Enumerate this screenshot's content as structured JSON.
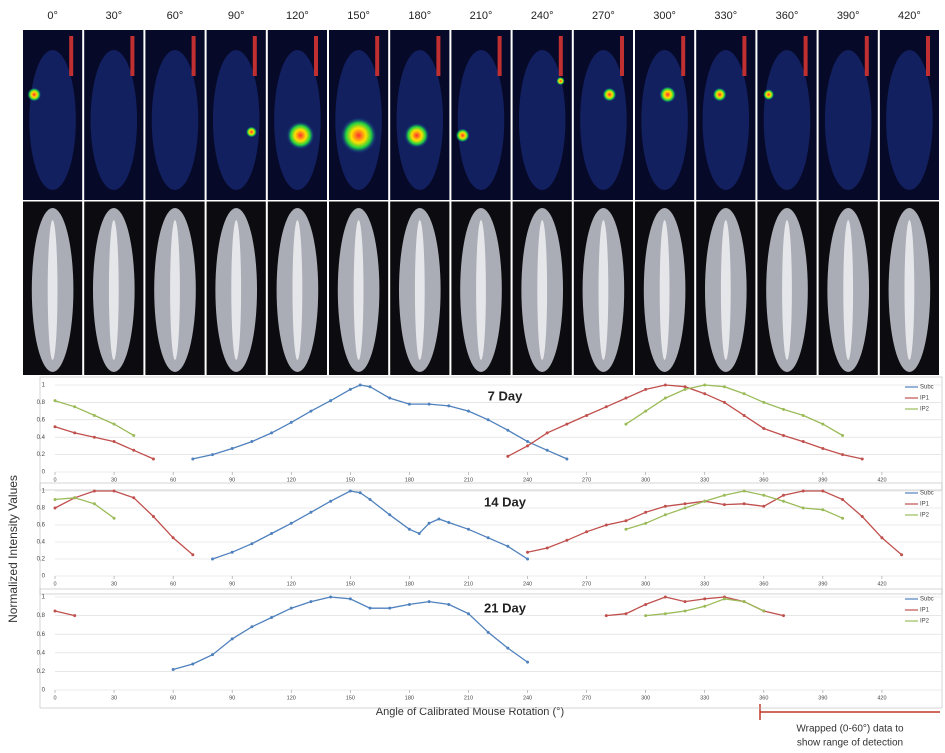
{
  "figure": {
    "angles": [
      "0°",
      "30°",
      "60°",
      "90°",
      "120°",
      "150°",
      "180°",
      "210°",
      "240°",
      "270°",
      "300°",
      "330°",
      "360°",
      "390°",
      "420°"
    ],
    "y_axis_label": "Normalized Intensity Values",
    "x_axis_label": "Angle of Calibrated Mouse Rotation (°)",
    "annotation": [
      "Wrapped (0-60°) data to",
      "show range of detection"
    ]
  },
  "chart_data": [
    {
      "type": "line",
      "title": "7 Day",
      "xlim": [
        0,
        450
      ],
      "xticks": [
        0,
        30,
        60,
        90,
        120,
        150,
        180,
        210,
        240,
        270,
        300,
        330,
        360,
        390,
        420
      ],
      "ylim": [
        0,
        1
      ],
      "yticks": [
        0,
        0.2,
        0.4,
        0.6,
        0.8,
        1
      ],
      "grid": true,
      "legend": "right",
      "series": [
        {
          "name": "Subc",
          "color": "#4f81bd",
          "x": [
            70,
            80,
            90,
            100,
            110,
            120,
            130,
            140,
            150,
            155,
            160,
            170,
            180,
            190,
            200,
            210,
            220,
            230,
            240,
            250,
            260
          ],
          "values": [
            0.15,
            0.2,
            0.27,
            0.35,
            0.45,
            0.57,
            0.7,
            0.82,
            0.95,
            1,
            0.98,
            0.85,
            0.78,
            0.78,
            0.76,
            0.7,
            0.6,
            0.48,
            0.35,
            0.25,
            0.15
          ]
        },
        {
          "name": "IP1",
          "color": "#c0504d",
          "x": [
            0,
            10,
            20,
            30,
            40,
            50,
            140,
            230,
            240,
            250,
            260,
            270,
            280,
            290,
            300,
            310,
            320,
            330,
            340,
            350,
            360,
            370,
            380,
            390,
            400,
            410
          ],
          "values": [
            0.52,
            0.45,
            0.4,
            0.35,
            0.25,
            0.15,
            null,
            0.18,
            0.3,
            0.45,
            0.55,
            0.65,
            0.75,
            0.85,
            0.95,
            1,
            0.98,
            0.9,
            0.8,
            0.65,
            0.5,
            0.42,
            0.35,
            0.27,
            0.2,
            0.15
          ]
        },
        {
          "name": "IP2",
          "color": "#9bbb59",
          "x": [
            0,
            10,
            20,
            30,
            40,
            160,
            290,
            300,
            310,
            320,
            330,
            340,
            350,
            360,
            370,
            380,
            390,
            400
          ],
          "values": [
            0.82,
            0.75,
            0.65,
            0.55,
            0.42,
            null,
            0.55,
            0.7,
            0.85,
            0.95,
            1,
            0.98,
            0.9,
            0.8,
            0.72,
            0.65,
            0.55,
            0.42
          ]
        }
      ]
    },
    {
      "type": "line",
      "title": "14 Day",
      "xlim": [
        0,
        450
      ],
      "xticks": [
        0,
        30,
        60,
        90,
        120,
        150,
        180,
        210,
        240,
        270,
        300,
        330,
        360,
        390,
        420
      ],
      "ylim": [
        0,
        1
      ],
      "yticks": [
        0,
        0.2,
        0.4,
        0.6,
        0.8,
        1
      ],
      "grid": true,
      "legend": "right",
      "series": [
        {
          "name": "Subc",
          "color": "#4f81bd",
          "x": [
            80,
            90,
            100,
            110,
            120,
            130,
            140,
            150,
            155,
            160,
            170,
            180,
            185,
            190,
            195,
            200,
            210,
            220,
            230,
            240
          ],
          "values": [
            0.2,
            0.28,
            0.38,
            0.5,
            0.62,
            0.75,
            0.88,
            1,
            0.98,
            0.9,
            0.72,
            0.55,
            0.5,
            0.62,
            0.67,
            0.63,
            0.55,
            0.45,
            0.35,
            0.2
          ]
        },
        {
          "name": "IP1",
          "color": "#c0504d",
          "x": [
            0,
            10,
            20,
            30,
            40,
            50,
            60,
            70,
            150,
            240,
            250,
            260,
            270,
            280,
            290,
            300,
            310,
            320,
            330,
            340,
            350,
            360,
            370,
            380,
            390,
            400,
            410,
            420,
            430
          ],
          "values": [
            0.8,
            0.92,
            1,
            1,
            0.92,
            0.7,
            0.45,
            0.25,
            null,
            0.28,
            0.33,
            0.42,
            0.52,
            0.6,
            0.65,
            0.75,
            0.82,
            0.85,
            0.88,
            0.84,
            0.85,
            0.82,
            0.95,
            1,
            1,
            0.9,
            0.7,
            0.45,
            0.25
          ]
        },
        {
          "name": "IP2",
          "color": "#9bbb59",
          "x": [
            0,
            10,
            20,
            30,
            160,
            290,
            300,
            310,
            320,
            330,
            340,
            350,
            360,
            370,
            380,
            390,
            400
          ],
          "values": [
            0.9,
            0.92,
            0.85,
            0.68,
            null,
            0.55,
            0.62,
            0.72,
            0.8,
            0.88,
            0.95,
            1,
            0.95,
            0.88,
            0.8,
            0.78,
            0.68
          ]
        }
      ]
    },
    {
      "type": "line",
      "title": "21 Day",
      "xlim": [
        0,
        450
      ],
      "xticks": [
        0,
        30,
        60,
        90,
        120,
        150,
        180,
        210,
        240,
        270,
        300,
        330,
        360,
        390,
        420
      ],
      "ylim": [
        0,
        1
      ],
      "yticks": [
        0,
        0.2,
        0.4,
        0.6,
        0.8,
        1
      ],
      "grid": true,
      "legend": "right",
      "series": [
        {
          "name": "Subc",
          "color": "#4f81bd",
          "x": [
            60,
            70,
            80,
            90,
            100,
            110,
            120,
            130,
            140,
            150,
            160,
            170,
            180,
            190,
            200,
            210,
            220,
            230,
            240
          ],
          "values": [
            0.22,
            0.28,
            0.38,
            0.55,
            0.68,
            0.78,
            0.88,
            0.95,
            1,
            0.98,
            0.88,
            0.88,
            0.92,
            0.95,
            0.92,
            0.82,
            0.62,
            0.45,
            0.3
          ]
        },
        {
          "name": "IP1",
          "color": "#c0504d",
          "x": [
            0,
            10,
            150,
            280,
            290,
            300,
            310,
            320,
            330,
            340,
            350,
            360,
            370
          ],
          "values": [
            0.85,
            0.8,
            null,
            0.8,
            0.82,
            0.92,
            1,
            0.95,
            0.98,
            1,
            0.95,
            0.85,
            0.8
          ]
        },
        {
          "name": "IP2",
          "color": "#9bbb59",
          "x": [
            300,
            310,
            320,
            330,
            340,
            350,
            360
          ],
          "values": [
            0.8,
            0.82,
            0.85,
            0.9,
            0.98,
            0.95,
            0.85
          ]
        }
      ]
    }
  ]
}
